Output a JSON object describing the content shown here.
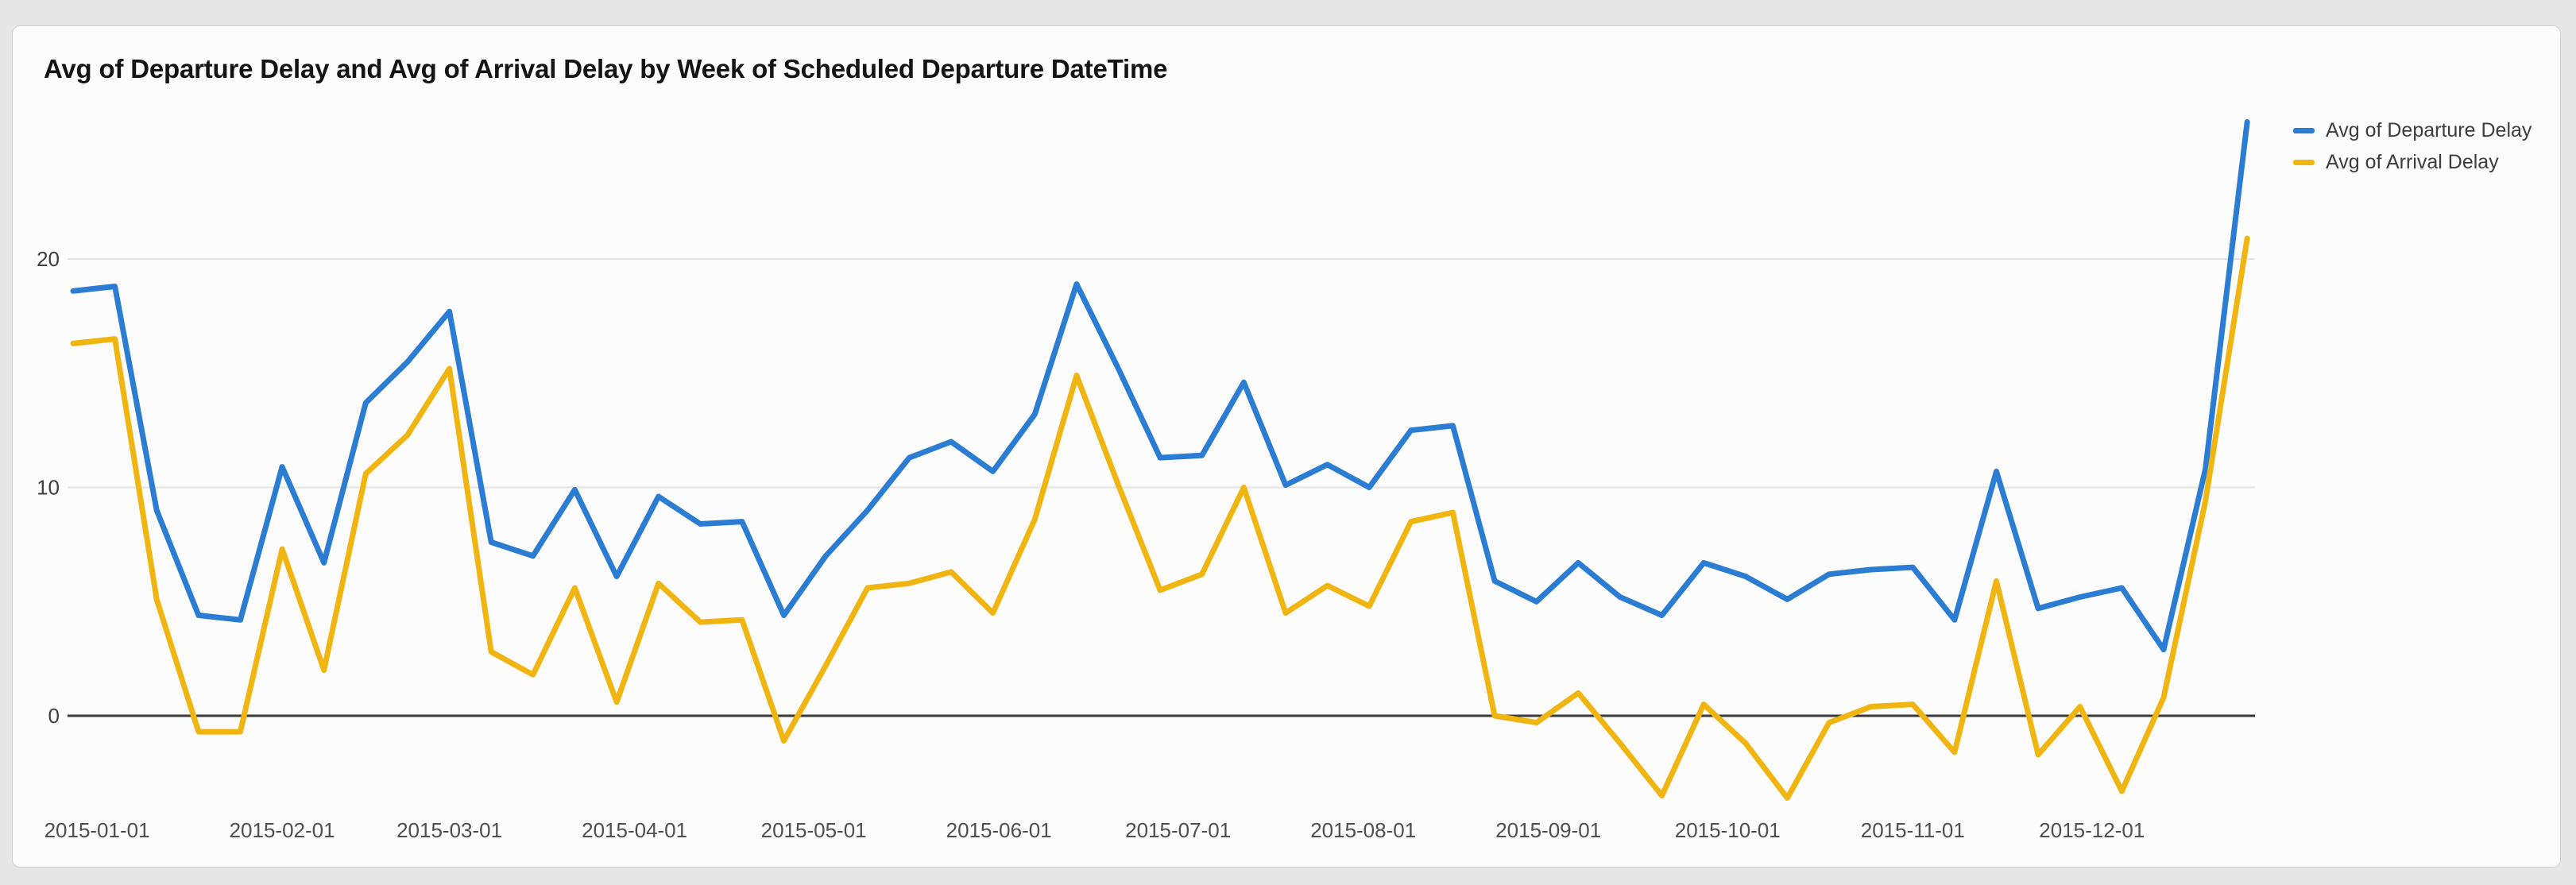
{
  "chart_data": {
    "type": "line",
    "title": "Avg of Departure Delay and Avg of Arrival Delay by Week of Scheduled Departure DateTime",
    "x_axis": {
      "unit": "Week of Scheduled Departure DateTime",
      "first_week_start": "2014-12-28",
      "weeks": 53,
      "tick_labels": [
        {
          "label": "2015-01-01",
          "day_offset": 4
        },
        {
          "label": "2015-02-01",
          "day_offset": 35
        },
        {
          "label": "2015-03-01",
          "day_offset": 63
        },
        {
          "label": "2015-04-01",
          "day_offset": 94
        },
        {
          "label": "2015-05-01",
          "day_offset": 124
        },
        {
          "label": "2015-06-01",
          "day_offset": 155
        },
        {
          "label": "2015-07-01",
          "day_offset": 185
        },
        {
          "label": "2015-08-01",
          "day_offset": 216
        },
        {
          "label": "2015-09-01",
          "day_offset": 247
        },
        {
          "label": "2015-10-01",
          "day_offset": 277
        },
        {
          "label": "2015-11-01",
          "day_offset": 308
        },
        {
          "label": "2015-12-01",
          "day_offset": 338
        }
      ]
    },
    "y_axis": {
      "ticks": [
        0,
        10,
        20
      ],
      "ylim": [
        -5,
        27
      ],
      "grid": true
    },
    "series": [
      {
        "name": "Avg of Departure Delay",
        "color": "#2B7CD3",
        "values": [
          18.6,
          18.8,
          9.0,
          4.4,
          4.2,
          10.9,
          6.7,
          13.7,
          15.5,
          17.7,
          7.6,
          7.0,
          9.9,
          6.1,
          9.6,
          8.4,
          8.5,
          4.4,
          7.0,
          9.0,
          11.3,
          12.0,
          10.7,
          13.2,
          18.9,
          15.2,
          11.3,
          11.4,
          14.6,
          10.1,
          11.0,
          10.0,
          12.5,
          12.7,
          5.9,
          5.0,
          6.7,
          5.2,
          4.4,
          6.7,
          6.1,
          5.1,
          6.2,
          6.4,
          6.5,
          4.2,
          10.7,
          4.7,
          5.2,
          5.6,
          2.9,
          10.8,
          26.0
        ]
      },
      {
        "name": "Avg of Arrival Delay",
        "color": "#F1B512",
        "values": [
          16.3,
          16.5,
          5.1,
          -0.7,
          -0.7,
          7.3,
          2.0,
          10.6,
          12.3,
          15.2,
          2.8,
          1.8,
          5.6,
          0.6,
          5.8,
          4.1,
          4.2,
          -1.1,
          2.2,
          5.6,
          5.8,
          6.3,
          4.5,
          8.6,
          14.9,
          10.1,
          5.5,
          6.2,
          10.0,
          4.5,
          5.7,
          4.8,
          8.5,
          8.9,
          0.0,
          -0.3,
          1.0,
          -1.2,
          -3.5,
          0.5,
          -1.2,
          -3.6,
          -0.3,
          0.4,
          0.5,
          -1.6,
          5.9,
          -1.7,
          0.4,
          -3.3,
          0.8,
          9.4,
          20.9
        ]
      }
    ],
    "legend_position": "top-right",
    "colors": {
      "grid_line": "#e4e4e4",
      "zero_line": "#3a3a3a",
      "tick_label": "#3f3f3f",
      "background_card": "#fcfcfc",
      "background_page": "#e7e7e7"
    }
  }
}
